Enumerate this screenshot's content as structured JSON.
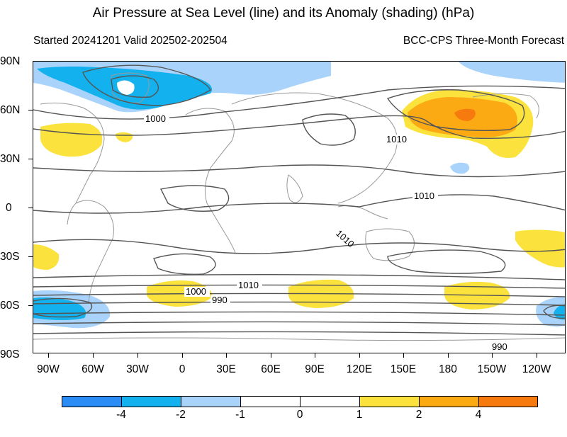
{
  "title": "Air Pressure at Sea Level (line) and its Anomaly (shading) (hPa)",
  "subtitle_left": "Started 20241201  Valid 202502-202504",
  "subtitle_right": "BCC-CPS Three-Month Forecast",
  "y_tick_labels": [
    "90N",
    "60N",
    "30N",
    "0",
    "30S",
    "60S",
    "90S"
  ],
  "x_tick_labels": [
    "90W",
    "60W",
    "30W",
    "0",
    "30E",
    "60E",
    "90E",
    "120E",
    "150E",
    "180",
    "150W",
    "120W"
  ],
  "contour_labels": [
    "1000",
    "1010",
    "1010",
    "1010",
    "1000",
    "1010",
    "990",
    "990"
  ],
  "colorbar": {
    "labels": [
      "-4",
      "-2",
      "-1",
      "0",
      "1",
      "2",
      "4"
    ],
    "colors": [
      "#2b8cf5",
      "#13b2ee",
      "#a9d3fa",
      "#ffffff",
      "#ffffff",
      "#fbe23c",
      "#fbaa14",
      "#f77a0f"
    ]
  },
  "colors": {
    "neg_light": "#a9d3fa",
    "neg_mid": "#13b2ee",
    "pos_light": "#fbe23c",
    "pos_mid": "#fbaa14",
    "pos_strong": "#f77a0f",
    "contour": "#555555",
    "coast": "#999999"
  }
}
